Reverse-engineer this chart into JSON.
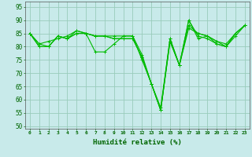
{
  "title": "",
  "xlabel": "Humidité relative (%)",
  "ylabel": "",
  "background_color": "#c8eaea",
  "grid_color": "#99ccbb",
  "line_color": "#00bb00",
  "xlim": [
    -0.5,
    23.5
  ],
  "ylim": [
    49,
    97
  ],
  "yticks": [
    50,
    55,
    60,
    65,
    70,
    75,
    80,
    85,
    90,
    95
  ],
  "xticks": [
    0,
    1,
    2,
    3,
    4,
    5,
    6,
    7,
    8,
    9,
    10,
    11,
    12,
    13,
    14,
    15,
    16,
    17,
    18,
    19,
    20,
    21,
    22,
    23
  ],
  "xtick_labels": [
    "0",
    "1",
    "2",
    "3",
    "4",
    "5",
    "6",
    "7",
    "8",
    "9",
    "10",
    "11",
    "12",
    "13",
    "14",
    "15",
    "16",
    "17",
    "18",
    "19",
    "20",
    "21",
    "22",
    "23"
  ],
  "series": [
    [
      85,
      80,
      80,
      84,
      83,
      85,
      85,
      84,
      84,
      83,
      83,
      83,
      76,
      66,
      56,
      82,
      73,
      87,
      85,
      84,
      82,
      81,
      85,
      88
    ],
    [
      85,
      80,
      80,
      84,
      83,
      85,
      85,
      84,
      84,
      83,
      83,
      83,
      76,
      66,
      56,
      82,
      73,
      88,
      85,
      84,
      82,
      80,
      84,
      88
    ],
    [
      85,
      81,
      80,
      84,
      83,
      86,
      85,
      84,
      84,
      84,
      84,
      84,
      77,
      66,
      57,
      83,
      73,
      90,
      84,
      83,
      81,
      80,
      85,
      88
    ],
    [
      85,
      81,
      82,
      83,
      84,
      86,
      85,
      78,
      78,
      81,
      84,
      84,
      75,
      66,
      56,
      83,
      73,
      90,
      83,
      84,
      81,
      80,
      85,
      88
    ]
  ]
}
